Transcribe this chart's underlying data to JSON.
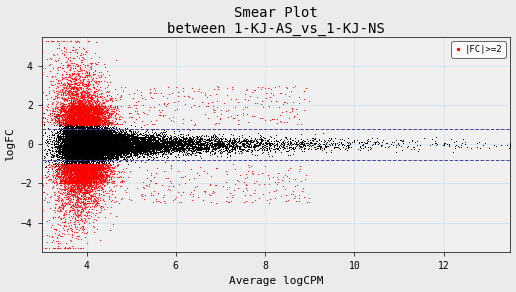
{
  "title_line1": "Smear Plot",
  "title_line2": "between 1-KJ-AS_vs_1-KJ-NS",
  "xlabel": "Average logCPM",
  "ylabel": "logFC",
  "xlim": [
    3.0,
    13.5
  ],
  "ylim": [
    -5.5,
    5.5
  ],
  "xticks": [
    4,
    6,
    8,
    10,
    12
  ],
  "yticks": [
    -4,
    -2,
    0,
    2,
    4
  ],
  "hline_y1": 0.8,
  "hline_y2": -0.8,
  "hline_color": "#4444AA",
  "hline_style": "dashed",
  "hline_lw": 0.7,
  "grid_color": "#C8DCE8",
  "grid_lw": 0.5,
  "bg_color": "#EBEBEB",
  "plot_bg": "#F0F0F0",
  "legend_label": "|FC|>=2",
  "legend_color": "red",
  "seed": 42,
  "black_dot_size": 0.5,
  "red_dot_size": 0.8,
  "title_fontsize": 10,
  "label_fontsize": 8,
  "tick_fontsize": 7,
  "font_family": "monospace"
}
